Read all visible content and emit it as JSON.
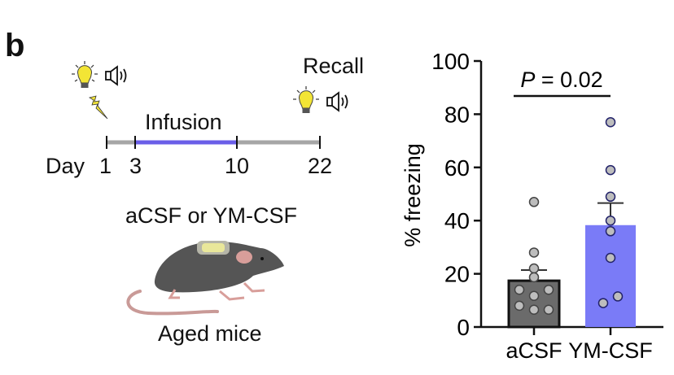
{
  "panel_label": "b",
  "schematic": {
    "conditioning_icons": [
      "lightbulb-icon",
      "speaker-icon",
      "lightning-shock-icon"
    ],
    "recall_label": "Recall",
    "recall_icons": [
      "lightbulb-icon",
      "speaker-icon"
    ],
    "infusion_label": "Infusion",
    "timeline": {
      "prefix": "Day",
      "days": [
        "1",
        "3",
        "10",
        "22"
      ],
      "infusion_start": 3,
      "infusion_end": 10
    },
    "treatment_label": "aCSF or YM-CSF",
    "subject_label": "Aged mice",
    "subject_icon": "mouse-with-implant-icon",
    "colors": {
      "timeline": "#a6a6a6",
      "infusion": "#6a5ee8",
      "bulb": "#f3e535"
    }
  },
  "chart_data": {
    "type": "bar",
    "title": "",
    "xlabel": "",
    "ylabel": "% freezing",
    "ylim": [
      0,
      100
    ],
    "yticks": [
      0,
      20,
      40,
      60,
      80,
      100
    ],
    "categories": [
      "aCSF",
      "YM-CSF"
    ],
    "values": [
      17.4,
      38.3
    ],
    "sem_upper": [
      21.4,
      46.6
    ],
    "colors": [
      "#6b6b6b",
      "#7a7bf7"
    ],
    "points": [
      [
        47,
        28,
        22,
        18.7,
        14,
        14,
        11.7,
        8,
        6.5,
        6.5
      ],
      [
        77,
        59,
        49,
        40,
        36,
        26,
        11.5,
        9
      ]
    ],
    "annotation": {
      "text_italic": "P",
      "text_rest": " = 0.02",
      "between": [
        "aCSF",
        "YM-CSF"
      ]
    },
    "grid": false,
    "legend": "none"
  }
}
